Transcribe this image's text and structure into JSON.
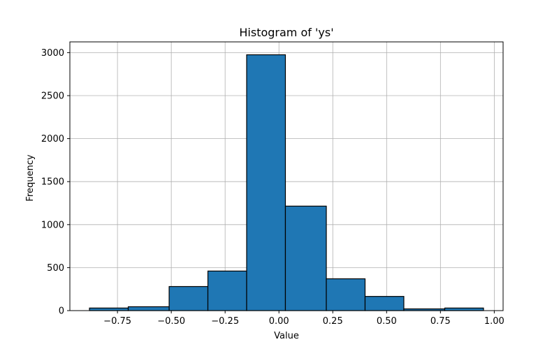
{
  "chart_data": {
    "type": "bar",
    "subtype": "histogram",
    "title": "Histogram of 'ys'",
    "xlabel": "Value",
    "ylabel": "Frequency",
    "grid": true,
    "bar_color": "#1f77b4",
    "edge_color": "#000000",
    "bins": [
      {
        "x0": -0.88,
        "x1": -0.7,
        "count": 30
      },
      {
        "x0": -0.7,
        "x1": -0.51,
        "count": 45
      },
      {
        "x0": -0.51,
        "x1": -0.33,
        "count": 280
      },
      {
        "x0": -0.33,
        "x1": -0.15,
        "count": 460
      },
      {
        "x0": -0.15,
        "x1": 0.03,
        "count": 2975
      },
      {
        "x0": 0.03,
        "x1": 0.22,
        "count": 1215
      },
      {
        "x0": 0.22,
        "x1": 0.4,
        "count": 370
      },
      {
        "x0": 0.4,
        "x1": 0.58,
        "count": 165
      },
      {
        "x0": 0.58,
        "x1": 0.77,
        "count": 20
      },
      {
        "x0": 0.77,
        "x1": 0.95,
        "count": 30
      }
    ],
    "xlim": [
      -0.971,
      1.041
    ],
    "ylim": [
      0,
      3125
    ],
    "xticks": [
      -0.75,
      -0.5,
      -0.25,
      0.0,
      0.25,
      0.5,
      0.75,
      1.0
    ],
    "xtick_labels": [
      "−0.75",
      "−0.50",
      "−0.25",
      "0.00",
      "0.25",
      "0.50",
      "0.75",
      "1.00"
    ],
    "yticks": [
      0,
      500,
      1000,
      1500,
      2000,
      2500,
      3000
    ],
    "ytick_labels": [
      "0",
      "500",
      "1000",
      "1500",
      "2000",
      "2500",
      "3000"
    ]
  }
}
